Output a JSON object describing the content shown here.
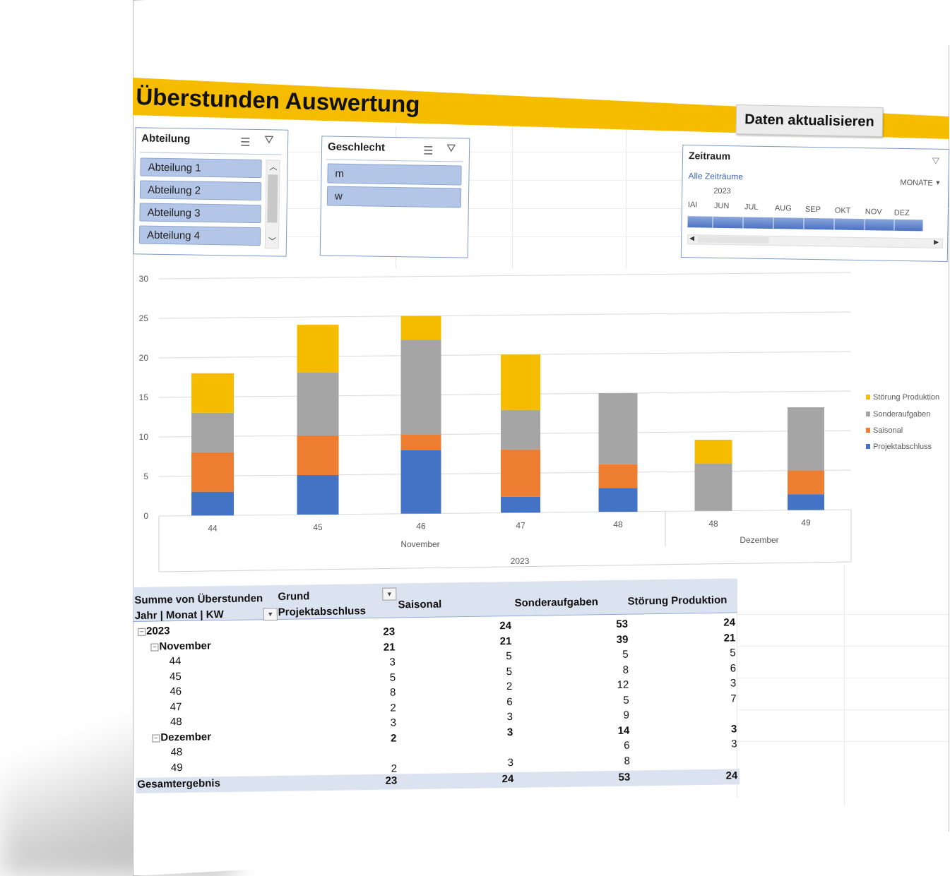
{
  "title": "Überstunden Auswertung",
  "refresh_button": "Daten aktualisieren",
  "slicer_abteilung": {
    "title": "Abteilung",
    "items": [
      "Abteilung 1",
      "Abteilung 2",
      "Abteilung 3",
      "Abteilung 4"
    ]
  },
  "slicer_geschlecht": {
    "title": "Geschlecht",
    "items": [
      "m",
      "w"
    ]
  },
  "timeline": {
    "title": "Zeitraum",
    "all_periods": "Alle Zeiträume",
    "level": "MONATE",
    "year": "2023",
    "months": [
      "IAI",
      "JUN",
      "JUL",
      "AUG",
      "SEP",
      "OKT",
      "NOV",
      "DEZ"
    ]
  },
  "colors": {
    "Projektabschluss": "#4472c4",
    "Saisonal": "#ed7d31",
    "Sonderaufgaben": "#a5a5a5",
    "Störung Produktion": "#f6bd00"
  },
  "chart_data": {
    "type": "bar",
    "stacked": true,
    "categories": [
      "44",
      "45",
      "46",
      "47",
      "48",
      "48",
      "49"
    ],
    "month_groups": [
      {
        "label": "November",
        "span": 5
      },
      {
        "label": "Dezember",
        "span": 2
      }
    ],
    "year_label": "2023",
    "ylim": [
      0,
      30
    ],
    "yticks": [
      "0",
      "5",
      "10",
      "15",
      "20",
      "25",
      "30"
    ],
    "legend_position": "right",
    "series": [
      {
        "name": "Projektabschluss",
        "values": [
          3,
          5,
          8,
          2,
          3,
          0,
          2
        ]
      },
      {
        "name": "Saisonal",
        "values": [
          5,
          5,
          2,
          6,
          3,
          0,
          3
        ]
      },
      {
        "name": "Sonderaufgaben",
        "values": [
          5,
          8,
          12,
          5,
          9,
          6,
          8
        ]
      },
      {
        "name": "Störung Produktion",
        "values": [
          5,
          6,
          3,
          7,
          0,
          3,
          0
        ]
      }
    ],
    "legend_order": [
      "Störung Produktion",
      "Sonderaufgaben",
      "Saisonal",
      "Projektabschluss"
    ]
  },
  "pivot": {
    "value_label": "Summe von Überstunden",
    "column_field": "Grund",
    "row_field": "Jahr | Monat | KW",
    "columns": [
      "Projektabschluss",
      "Saisonal",
      "Sonderaufgaben",
      "Störung Produktion"
    ],
    "rows": [
      {
        "label": "2023",
        "level": 0,
        "bold": true,
        "values": [
          "23",
          "24",
          "53",
          "24"
        ]
      },
      {
        "label": "November",
        "level": 1,
        "bold": true,
        "values": [
          "21",
          "21",
          "39",
          "21"
        ]
      },
      {
        "label": "44",
        "level": 2,
        "bold": false,
        "values": [
          "3",
          "5",
          "5",
          "5"
        ]
      },
      {
        "label": "45",
        "level": 2,
        "bold": false,
        "values": [
          "5",
          "5",
          "8",
          "6"
        ]
      },
      {
        "label": "46",
        "level": 2,
        "bold": false,
        "values": [
          "8",
          "2",
          "12",
          "3"
        ]
      },
      {
        "label": "47",
        "level": 2,
        "bold": false,
        "values": [
          "2",
          "6",
          "5",
          "7"
        ]
      },
      {
        "label": "48",
        "level": 2,
        "bold": false,
        "values": [
          "3",
          "3",
          "9",
          ""
        ]
      },
      {
        "label": "Dezember",
        "level": 1,
        "bold": true,
        "values": [
          "2",
          "3",
          "14",
          "3"
        ]
      },
      {
        "label": "48",
        "level": 2,
        "bold": false,
        "values": [
          "",
          "",
          "6",
          "3"
        ]
      },
      {
        "label": "49",
        "level": 2,
        "bold": false,
        "values": [
          "2",
          "3",
          "8",
          ""
        ]
      }
    ],
    "total": {
      "label": "Gesamtergebnis",
      "values": [
        "23",
        "24",
        "53",
        "24"
      ]
    }
  }
}
